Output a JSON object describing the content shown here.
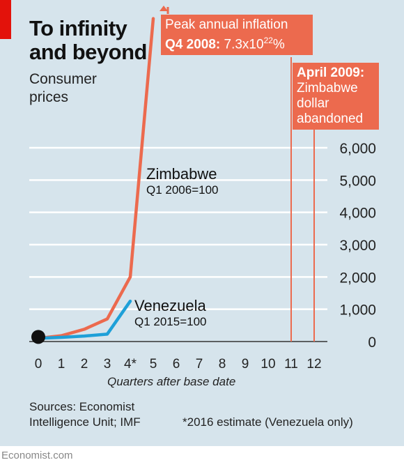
{
  "title": "To infinity and beyond",
  "subtitle": "Consumer prices",
  "x_axis_title": "Quarters after base date",
  "sources": "Sources: Economist Intelligence Unit; IMF",
  "footnote": "*2016 estimate (Venezuela only)",
  "brand": "Economist.com",
  "colors": {
    "background": "#d6e4ec",
    "zimbabwe": "#ec6a4e",
    "venezuela": "#1ea0d8",
    "accent_tag": "#e3120b"
  },
  "annotations": {
    "peak": {
      "line1": "Peak annual inflation",
      "line2_bold": "Q4 2008:",
      "line2_rest": " 7.3x10",
      "line2_sup": "22",
      "line2_end": "%"
    },
    "april": {
      "line1": "April 2009:",
      "line2": "Zimbabwe",
      "line3": "dollar",
      "line4": "abandoned"
    }
  },
  "series_labels": {
    "zimbabwe": {
      "name": "Zimbabwe",
      "base": "Q1 2006=100"
    },
    "venezuela": {
      "name": "Venezuela",
      "base": "Q1 2015=100"
    }
  },
  "chart_data": {
    "type": "line",
    "x_ticks": [
      "0",
      "1",
      "2",
      "3",
      "4*",
      "5",
      "6",
      "7",
      "8",
      "9",
      "10",
      "11",
      "12"
    ],
    "y_ticks": [
      "0",
      "1,000",
      "2,000",
      "3,000",
      "4,000",
      "5,000",
      "6,000"
    ],
    "ylim": [
      0,
      6000
    ],
    "xlim": [
      0,
      12
    ],
    "y_axis_side": "right",
    "grid": true,
    "series": [
      {
        "name": "Zimbabwe",
        "x": [
          0,
          1,
          2,
          3,
          4,
          5
        ],
        "y": [
          100,
          180,
          380,
          700,
          2000,
          10000
        ],
        "note": ""
      },
      {
        "name": "Venezuela",
        "x": [
          0,
          1,
          2,
          3,
          4
        ],
        "y": [
          100,
          130,
          170,
          230,
          1250
        ]
      }
    ],
    "vertical_markers": [
      11,
      12
    ],
    "base_marker": {
      "x": 0,
      "y": 100
    }
  }
}
